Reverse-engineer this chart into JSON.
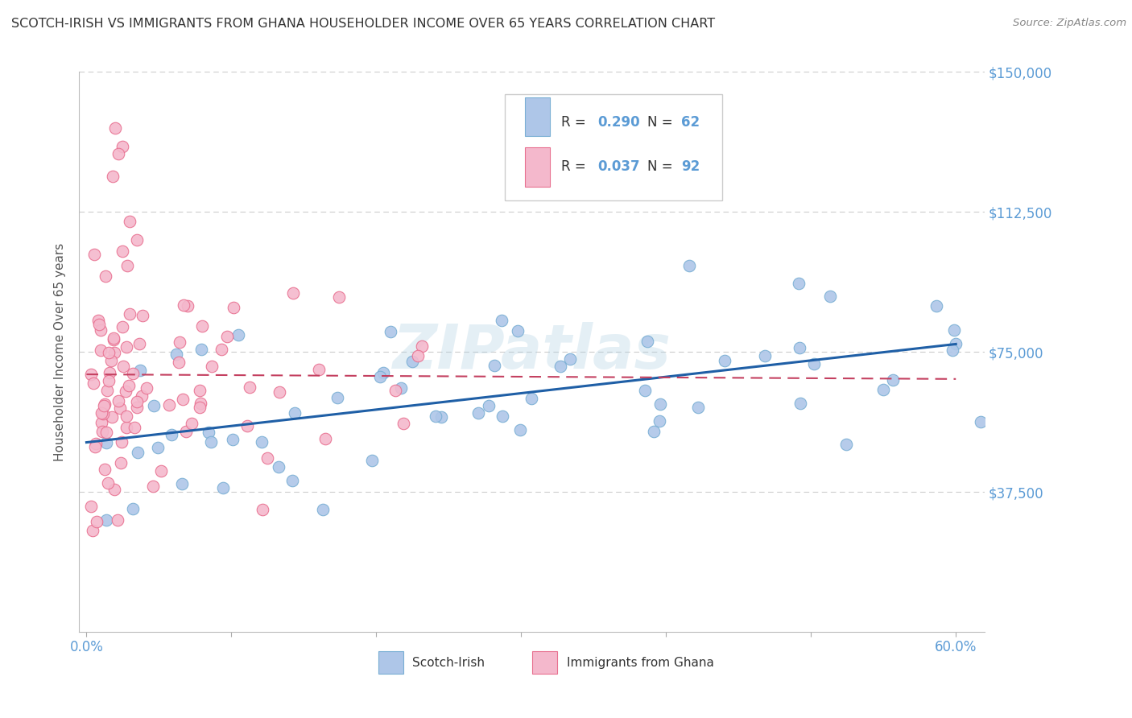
{
  "title": "SCOTCH-IRISH VS IMMIGRANTS FROM GHANA HOUSEHOLDER INCOME OVER 65 YEARS CORRELATION CHART",
  "source": "Source: ZipAtlas.com",
  "ylabel": "Householder Income Over 65 years",
  "background_color": "#ffffff",
  "grid_color": "#cccccc",
  "watermark": "ZIPatlas",
  "watermark_color": "#a8cce0",
  "title_color": "#333333",
  "axis_label_color": "#5b9bd5",
  "scotch_irish_color": "#aec6e8",
  "scotch_irish_edge_color": "#7aafd4",
  "ghana_color": "#f4b8cc",
  "ghana_edge_color": "#e87090",
  "scotch_irish_line_color": "#1f5fa6",
  "ghana_line_color": "#c44060",
  "legend_R1": "0.290",
  "legend_N1": "62",
  "legend_R2": "0.037",
  "legend_N2": "92"
}
